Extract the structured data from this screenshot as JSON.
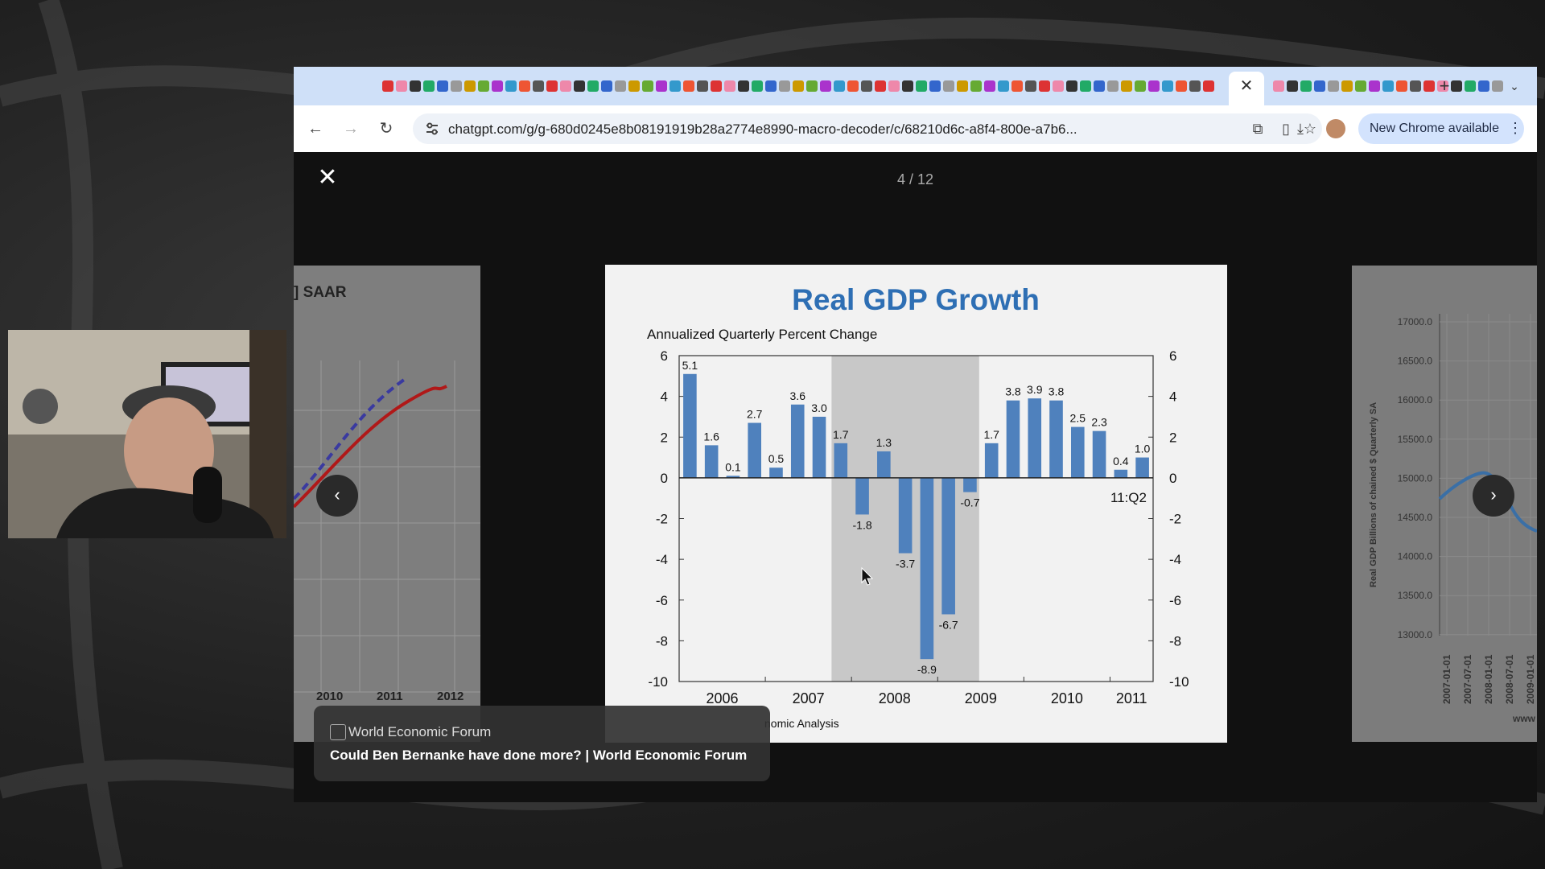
{
  "browser": {
    "url": "chatgpt.com/g/g-680d0245e8b08191919b28a2774e8990-macro-decoder/c/68210d6c-a8f4-800e-a7b6...",
    "new_chrome_label": "New Chrome available"
  },
  "viewer": {
    "counter": "4 / 12",
    "caption_source": "World Economic Forum",
    "caption_title": "Could Ben Bernanke have done more? | World Economic Forum"
  },
  "left_slide": {
    "label": "] SAAR",
    "x_ticks": [
      "2010",
      "2011",
      "2012"
    ]
  },
  "right_slide": {
    "y_label": "Real GDP  Billions of chained $ Quarterly SA",
    "y_ticks": [
      "17000.0",
      "16500.0",
      "16000.0",
      "15500.0",
      "15000.0",
      "14500.0",
      "14000.0",
      "13500.0",
      "13000.0"
    ],
    "x_ticks": [
      "2007-01-01",
      "2007-07-01",
      "2008-01-01",
      "2008-07-01",
      "2009-01-01"
    ],
    "footer": "www"
  },
  "chart_data": {
    "type": "bar",
    "title": "Real GDP Growth",
    "subtitle": "Annualized Quarterly Percent Change",
    "values": [
      5.1,
      1.6,
      0.1,
      2.7,
      0.5,
      3.6,
      3.0,
      1.7,
      -1.8,
      1.3,
      -3.7,
      -8.9,
      -6.7,
      -0.7,
      1.7,
      3.8,
      3.9,
      3.8,
      2.5,
      2.3,
      0.4,
      1.0
    ],
    "value_labels": [
      "5.1",
      "1.6",
      "0.1",
      "2.7",
      "0.5",
      "3.6",
      "3.0",
      "1.7",
      "-1.8",
      "1.3",
      "-3.7",
      "-8.9",
      "-6.7",
      "-0.7",
      "1.7",
      "3.8",
      "3.9",
      "3.8",
      "2.5",
      "2.3",
      "0.4",
      "1.0"
    ],
    "x_labels": [
      "2006",
      "2007",
      "2008",
      "2009",
      "2010",
      "2011"
    ],
    "y_ticks": [
      "6",
      "4",
      "2",
      "0",
      "-2",
      "-4",
      "-6",
      "-8",
      "-10"
    ],
    "ylim": [
      -10,
      6
    ],
    "recession_shading": {
      "start_index": 7,
      "end_index": 13
    },
    "end_annotation": "11:Q2",
    "source_fragment": "nomic Analysis",
    "bar_color": "#4f81bd",
    "title_color": "#2e6fb4"
  }
}
